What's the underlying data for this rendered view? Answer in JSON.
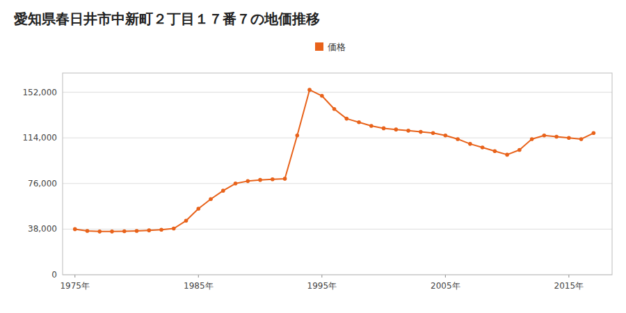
{
  "chart_data": {
    "type": "line",
    "title": "愛知県春日井市中新町２丁目１７番７の地価推移",
    "x": [
      1975,
      1976,
      1977,
      1978,
      1979,
      1980,
      1981,
      1982,
      1983,
      1984,
      1985,
      1986,
      1987,
      1988,
      1989,
      1990,
      1991,
      1992,
      1993,
      1994,
      1995,
      1996,
      1997,
      1998,
      1999,
      2000,
      2001,
      2002,
      2003,
      2004,
      2005,
      2006,
      2007,
      2008,
      2009,
      2010,
      2011,
      2012,
      2013,
      2014,
      2015,
      2016,
      2017
    ],
    "series": [
      {
        "name": "価格",
        "color": "#E8621A",
        "marker": "circle",
        "values": [
          38000,
          36500,
          36000,
          36000,
          36200,
          36500,
          37000,
          37500,
          38500,
          45000,
          55000,
          63000,
          70000,
          76000,
          78000,
          79000,
          79500,
          80000,
          116000,
          154000,
          149000,
          138000,
          130000,
          127000,
          124000,
          122000,
          121000,
          120000,
          119000,
          118000,
          116000,
          113000,
          109000,
          106000,
          103000,
          100000,
          104000,
          113000,
          116000,
          115000,
          114000,
          113000,
          118000
        ]
      }
    ],
    "xlim": [
      1974,
      2018.5
    ],
    "xticks": [
      {
        "value": 1975,
        "label": "1975年"
      },
      {
        "value": 1985,
        "label": "1985年"
      },
      {
        "value": 1995,
        "label": "1995年"
      },
      {
        "value": 2005,
        "label": "2005年"
      },
      {
        "value": 2015,
        "label": "2015年"
      }
    ],
    "ylim": [
      0,
      168000
    ],
    "yticks": [
      0,
      {
        "value": 38000,
        "label": "38,000"
      },
      {
        "value": 76000,
        "label": "76,000"
      },
      {
        "value": 114000,
        "label": "114,000"
      },
      {
        "value": 152000,
        "label": "152,000"
      }
    ],
    "grid": true,
    "legend": "top"
  }
}
